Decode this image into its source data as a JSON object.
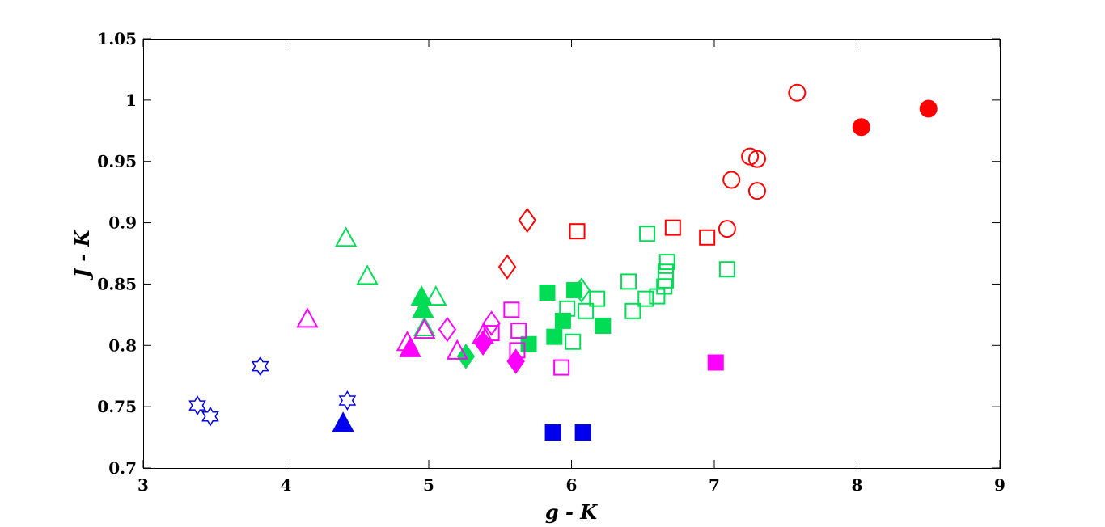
{
  "chart_data": {
    "type": "scatter",
    "title": "",
    "xlabel": "g - K",
    "ylabel": "J - K",
    "xlim": [
      3,
      9
    ],
    "ylim": [
      0.7,
      1.05
    ],
    "xticks": [
      3,
      4,
      5,
      6,
      7,
      8,
      9
    ],
    "xtick_labels": [
      "3",
      "4",
      "5",
      "6",
      "7",
      "8",
      "9"
    ],
    "yticks": [
      0.7,
      0.75,
      0.8,
      0.85,
      0.9,
      0.95,
      1.0,
      1.05
    ],
    "ytick_labels": [
      "0.7",
      "0.75",
      "0.8",
      "0.85",
      "0.9",
      "0.95",
      "1",
      "1.05"
    ],
    "grid": false,
    "series": [
      {
        "name": "red open circles",
        "marker": "circle",
        "filled": false,
        "color": "#ff0000",
        "points": [
          [
            7.58,
            1.006
          ],
          [
            7.12,
            0.935
          ],
          [
            7.25,
            0.954
          ],
          [
            7.3,
            0.952
          ],
          [
            7.3,
            0.926
          ],
          [
            7.09,
            0.895
          ]
        ]
      },
      {
        "name": "red filled circles",
        "marker": "circle",
        "filled": true,
        "color": "#ff0000",
        "points": [
          [
            8.03,
            0.978
          ],
          [
            8.5,
            0.993
          ]
        ]
      },
      {
        "name": "red open squares",
        "marker": "square",
        "filled": false,
        "color": "#ff0000",
        "points": [
          [
            6.04,
            0.893
          ],
          [
            6.71,
            0.896
          ],
          [
            6.95,
            0.888
          ]
        ]
      },
      {
        "name": "red open diamonds",
        "marker": "diamond",
        "filled": false,
        "color": "#ff0000",
        "points": [
          [
            5.69,
            0.902
          ],
          [
            5.55,
            0.864
          ]
        ]
      },
      {
        "name": "green open triangles",
        "marker": "triangle",
        "filled": false,
        "color": "#00dd55",
        "points": [
          [
            4.42,
            0.887
          ],
          [
            4.57,
            0.856
          ],
          [
            5.05,
            0.839
          ],
          [
            4.97,
            0.814
          ]
        ]
      },
      {
        "name": "green filled triangles",
        "marker": "triangle",
        "filled": true,
        "color": "#00dd55",
        "points": [
          [
            4.95,
            0.839
          ],
          [
            4.96,
            0.829
          ]
        ]
      },
      {
        "name": "green open squares",
        "marker": "square",
        "filled": false,
        "color": "#00dd55",
        "points": [
          [
            6.53,
            0.891
          ],
          [
            6.67,
            0.868
          ],
          [
            6.66,
            0.86
          ],
          [
            6.66,
            0.853
          ],
          [
            6.65,
            0.848
          ],
          [
            6.4,
            0.852
          ],
          [
            6.6,
            0.84
          ],
          [
            6.52,
            0.838
          ],
          [
            6.43,
            0.828
          ],
          [
            6.18,
            0.838
          ],
          [
            6.1,
            0.828
          ],
          [
            5.97,
            0.83
          ],
          [
            6.01,
            0.803
          ],
          [
            7.09,
            0.862
          ]
        ]
      },
      {
        "name": "green filled squares",
        "marker": "square",
        "filled": true,
        "color": "#00dd55",
        "points": [
          [
            5.83,
            0.843
          ],
          [
            6.02,
            0.845
          ],
          [
            5.94,
            0.82
          ],
          [
            5.88,
            0.807
          ],
          [
            5.7,
            0.801
          ],
          [
            6.22,
            0.816
          ]
        ]
      },
      {
        "name": "green open diamonds",
        "marker": "diamond",
        "filled": false,
        "color": "#00dd55",
        "points": [
          [
            6.07,
            0.845
          ]
        ]
      },
      {
        "name": "green filled diamonds",
        "marker": "diamond",
        "filled": true,
        "color": "#00dd55",
        "points": [
          [
            5.26,
            0.791
          ]
        ]
      },
      {
        "name": "magenta open triangles",
        "marker": "triangle",
        "filled": false,
        "color": "#ff00ff",
        "points": [
          [
            4.15,
            0.821
          ],
          [
            4.85,
            0.802
          ],
          [
            4.97,
            0.812
          ],
          [
            5.2,
            0.795
          ],
          [
            5.38,
            0.808
          ]
        ]
      },
      {
        "name": "magenta filled triangles",
        "marker": "triangle",
        "filled": true,
        "color": "#ff00ff",
        "points": [
          [
            4.87,
            0.797
          ]
        ]
      },
      {
        "name": "magenta open diamonds",
        "marker": "diamond",
        "filled": false,
        "color": "#ff00ff",
        "points": [
          [
            5.13,
            0.813
          ],
          [
            5.44,
            0.818
          ]
        ]
      },
      {
        "name": "magenta filled diamonds",
        "marker": "diamond",
        "filled": true,
        "color": "#ff00ff",
        "points": [
          [
            5.38,
            0.802
          ],
          [
            5.61,
            0.787
          ]
        ]
      },
      {
        "name": "magenta open squares",
        "marker": "square",
        "filled": false,
        "color": "#ff00ff",
        "points": [
          [
            5.58,
            0.829
          ],
          [
            5.44,
            0.81
          ],
          [
            5.63,
            0.812
          ],
          [
            5.62,
            0.796
          ],
          [
            5.93,
            0.782
          ]
        ]
      },
      {
        "name": "magenta filled squares",
        "marker": "square",
        "filled": true,
        "color": "#ff00ff",
        "points": [
          [
            7.01,
            0.786
          ]
        ]
      },
      {
        "name": "blue hexagrams",
        "marker": "hexagram",
        "filled": false,
        "color": "#0000ee",
        "points": [
          [
            3.82,
            0.783
          ],
          [
            4.43,
            0.755
          ],
          [
            3.38,
            0.751
          ],
          [
            3.47,
            0.742
          ]
        ]
      },
      {
        "name": "blue filled triangles",
        "marker": "triangle",
        "filled": true,
        "color": "#0000ee",
        "points": [
          [
            4.4,
            0.736
          ]
        ]
      },
      {
        "name": "blue filled squares",
        "marker": "square",
        "filled": true,
        "color": "#0000ee",
        "points": [
          [
            5.87,
            0.729
          ],
          [
            6.08,
            0.729
          ]
        ]
      }
    ]
  }
}
